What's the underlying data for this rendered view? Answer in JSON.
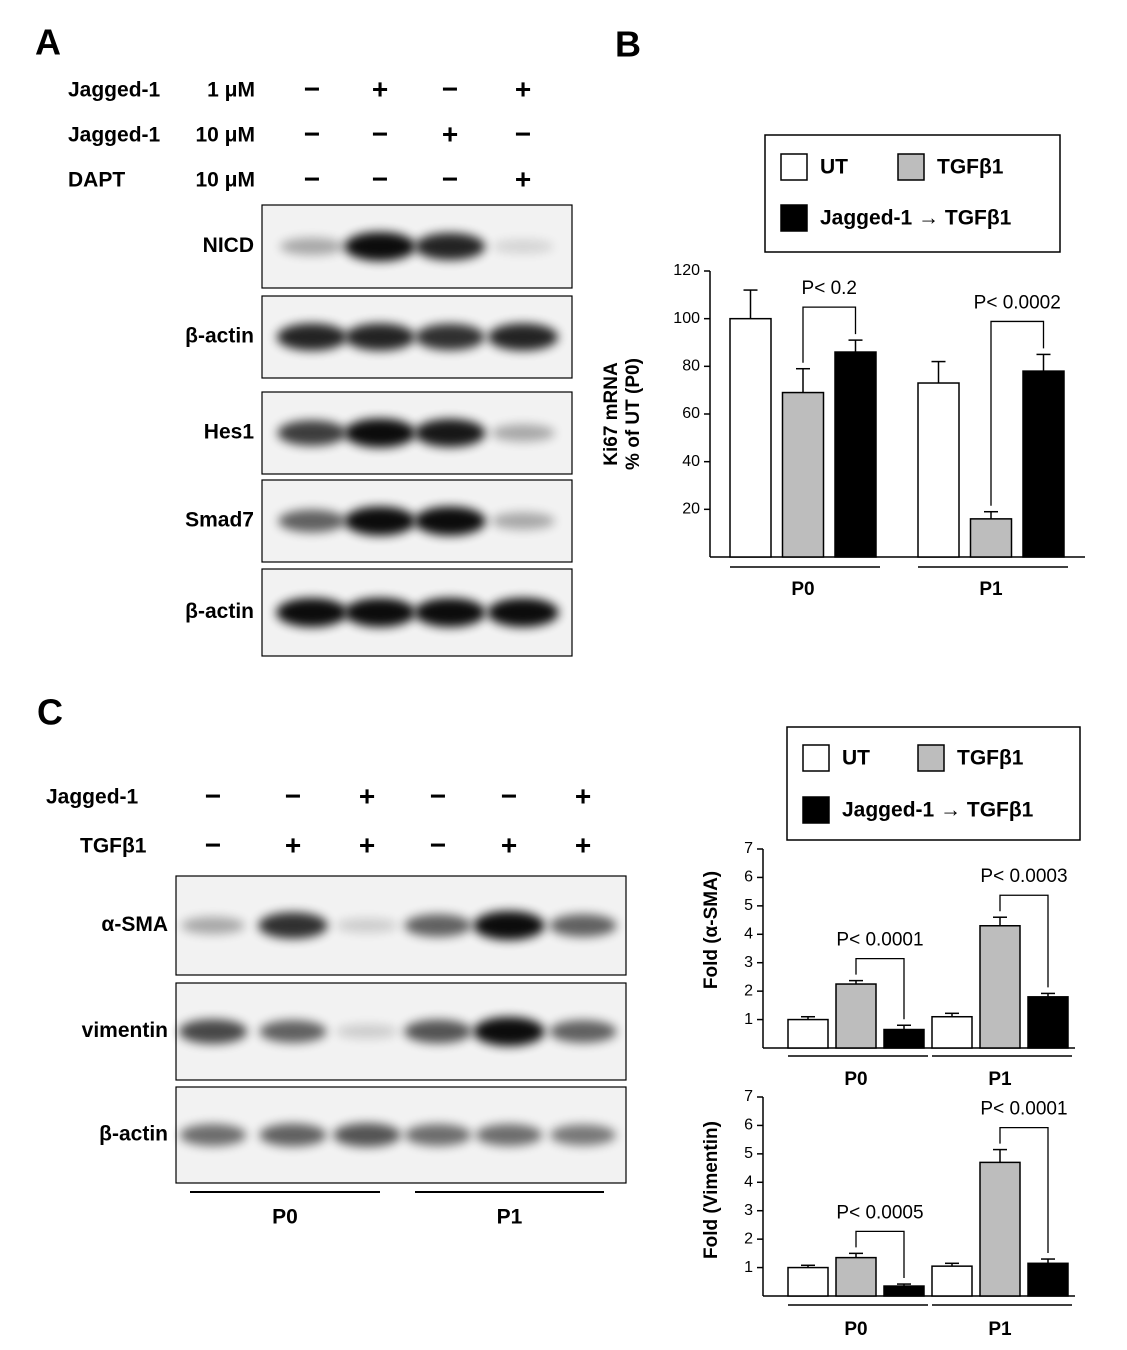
{
  "panels": [
    "A",
    "B",
    "C"
  ],
  "panel_a": {
    "treatments": [
      {
        "agent": "Jagged-1",
        "dose": "1 μM",
        "signs": [
          "−",
          "+",
          "−",
          "+"
        ]
      },
      {
        "agent": "Jagged-1",
        "dose": "10 μM",
        "signs": [
          "−",
          "−",
          "+",
          "−"
        ]
      },
      {
        "agent": "DAPT",
        "dose": "10 μM",
        "signs": [
          "−",
          "−",
          "−",
          "+"
        ]
      }
    ],
    "blots": [
      "NICD",
      "β-actin",
      "Hes1",
      "Smad7",
      "β-actin"
    ]
  },
  "panel_c": {
    "treatments": [
      {
        "agent": "Jagged-1",
        "signs": [
          "−",
          "−",
          "+",
          "−",
          "−",
          "+"
        ]
      },
      {
        "agent": "TGFβ1",
        "signs": [
          "−",
          "+",
          "+",
          "−",
          "+",
          "+"
        ]
      }
    ],
    "blots": [
      "α-SMA",
      "vimentin",
      "β-actin"
    ],
    "groups": [
      "P0",
      "P1"
    ]
  },
  "chart_data": [
    {
      "type": "bar",
      "ylabel": [
        "Ki67 mRNA",
        "% of UT (P0)"
      ],
      "categories": [
        "P0",
        "P1"
      ],
      "series": [
        {
          "name": "UT",
          "color": "#ffffff",
          "values": [
            100,
            73
          ],
          "errors": [
            12,
            9
          ]
        },
        {
          "name": "TGFβ1",
          "color": "#bdbdbd",
          "values": [
            69,
            16
          ],
          "errors": [
            10,
            3
          ]
        },
        {
          "name": "Jagged-1 → TGFβ1",
          "color": "#000000",
          "values": [
            86,
            78
          ],
          "errors": [
            5,
            7
          ]
        }
      ],
      "ylim": [
        0,
        120
      ],
      "yticks": [
        20,
        40,
        60,
        80,
        100,
        120
      ],
      "annotations": [
        "P< 0.2",
        "P< 0.0002"
      ]
    },
    {
      "type": "bar",
      "ylabel": [
        "Fold (α-SMA)"
      ],
      "categories": [
        "P0",
        "P1"
      ],
      "series": [
        {
          "name": "UT",
          "color": "#ffffff",
          "values": [
            1.0,
            1.1
          ],
          "errors": [
            0.1,
            0.12
          ]
        },
        {
          "name": "TGFβ1",
          "color": "#bdbdbd",
          "values": [
            2.25,
            4.3
          ],
          "errors": [
            0.12,
            0.3
          ]
        },
        {
          "name": "Jagged-1 → TGFβ1",
          "color": "#000000",
          "values": [
            0.65,
            1.8
          ],
          "errors": [
            0.15,
            0.12
          ]
        }
      ],
      "ylim": [
        0,
        7
      ],
      "yticks": [
        1,
        2,
        3,
        4,
        5,
        6,
        7
      ],
      "annotations": [
        "P< 0.0001",
        "P< 0.0003"
      ]
    },
    {
      "type": "bar",
      "ylabel": [
        "Fold (Vimentin)"
      ],
      "categories": [
        "P0",
        "P1"
      ],
      "series": [
        {
          "color": "#ffffff",
          "values": [
            1.0,
            1.05
          ],
          "errors": [
            0.08,
            0.1
          ]
        },
        {
          "color": "#bdbdbd",
          "values": [
            1.35,
            4.7
          ],
          "errors": [
            0.15,
            0.45
          ]
        },
        {
          "color": "#000000",
          "values": [
            0.35,
            1.15
          ],
          "errors": [
            0.07,
            0.15
          ]
        }
      ],
      "ylim": [
        0,
        7
      ],
      "yticks": [
        1,
        2,
        3,
        4,
        5,
        6,
        7
      ],
      "annotations": [
        "P< 0.0005",
        "P< 0.0001"
      ]
    }
  ]
}
